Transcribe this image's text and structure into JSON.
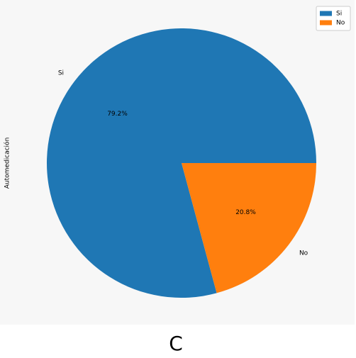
{
  "chart_data": {
    "type": "pie",
    "categories": [
      "Si",
      "No"
    ],
    "values": [
      79.2,
      20.8
    ],
    "value_labels": [
      "79.2%",
      "20.8%"
    ],
    "colors": [
      "#1f77b4",
      "#ff7f0e"
    ],
    "ylabel": "Automedicación",
    "legend": "upper right"
  },
  "caption": "C"
}
